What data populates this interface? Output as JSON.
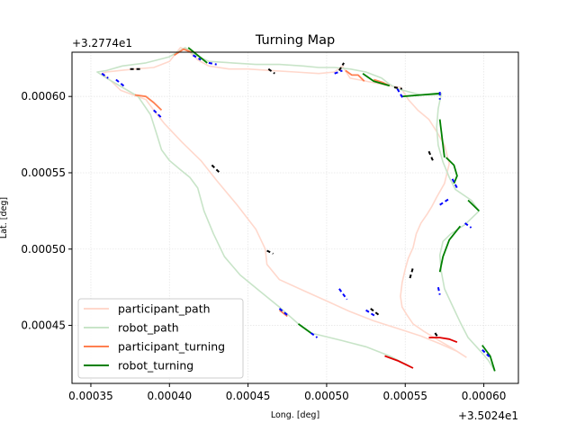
{
  "chart_data": {
    "type": "line",
    "title": "Turning Map",
    "xlabel": "Long. [deg]",
    "ylabel": "Lat. [deg]",
    "x_offset_label": "+3.5024e1",
    "y_offset_label": "+3.2774e1",
    "xlim": [
      0.000338,
      0.000622
    ],
    "ylim": [
      0.000412,
      0.000629
    ],
    "x_ticks": [
      0.00035,
      0.0004,
      0.00045,
      0.0005,
      0.00055,
      0.0006
    ],
    "x_tick_labels": [
      "0.00035",
      "0.00040",
      "0.00045",
      "0.00050",
      "0.00055",
      "0.00060"
    ],
    "y_ticks": [
      0.00045,
      0.0005,
      0.00055,
      0.0006
    ],
    "y_tick_labels": [
      "0.00045",
      "0.00050",
      "0.00055",
      "0.00060"
    ],
    "grid": true,
    "legend_position": "lower-left",
    "colors": {
      "participant_path": "#ffd8cc",
      "robot_path": "#c8e4c8",
      "participant_turning": "#ff7f50",
      "robot_turning": "#008000",
      "blue_dash": "#0000ff",
      "black_dash": "#000000",
      "red_segment": "#e00000"
    },
    "series": [
      {
        "name": "participant_path",
        "kind": "path",
        "x": [
          0.000589,
          0.000583,
          0.000572,
          0.00056,
          0.000545,
          0.00053,
          0.000515,
          0.0005,
          0.000485,
          0.00047,
          0.000462,
          0.000461,
          0.000455,
          0.000443,
          0.00043,
          0.00042,
          0.000408,
          0.000397,
          0.00039,
          0.000385,
          0.000377,
          0.000369,
          0.000363,
          0.000357,
          0.00036,
          0.000368,
          0.000378,
          0.00039,
          0.0004,
          0.000407,
          0.000412,
          0.000418,
          0.000425,
          0.000438,
          0.00045,
          0.000465,
          0.00048,
          0.000495,
          0.000505,
          0.00051,
          0.000515,
          0.00052,
          0.00053,
          0.00054,
          0.000547,
          0.000552,
          0.000558,
          0.000565,
          0.00057,
          0.000575,
          0.000578,
          0.000575,
          0.00057,
          0.000567,
          0.000564,
          0.00056,
          0.000557,
          0.000555,
          0.000552,
          0.00055,
          0.000548,
          0.000547,
          0.000548,
          0.000551,
          0.000555,
          0.000562,
          0.00057,
          0.00058,
          0.000589
        ],
        "y": [
          0.000429,
          0.000433,
          0.000438,
          0.000443,
          0.000448,
          0.000453,
          0.000459,
          0.000466,
          0.000473,
          0.00048,
          0.00049,
          0.0005,
          0.000513,
          0.000529,
          0.000545,
          0.000558,
          0.00057,
          0.000582,
          0.000591,
          0.000598,
          0.000601,
          0.000604,
          0.00061,
          0.000615,
          0.000616,
          0.000617,
          0.000618,
          0.000619,
          0.000623,
          0.000632,
          0.00063,
          0.000624,
          0.00062,
          0.000618,
          0.000618,
          0.000617,
          0.000616,
          0.000615,
          0.000616,
          0.00062,
          0.000612,
          0.000611,
          0.000609,
          0.000607,
          0.000606,
          0.000598,
          0.000591,
          0.000585,
          0.000577,
          0.000568,
          0.000556,
          0.000543,
          0.000534,
          0.000528,
          0.000523,
          0.000517,
          0.00051,
          0.000501,
          0.000494,
          0.000487,
          0.000478,
          0.000469,
          0.000462,
          0.000457,
          0.000451,
          0.000446,
          0.000441,
          0.000435,
          0.000429
        ]
      },
      {
        "name": "robot_path",
        "kind": "path",
        "x": [
          0.000607,
          0.000603,
          0.000598,
          0.00059,
          0.000585,
          0.00058,
          0.000575,
          0.000573,
          0.000572,
          0.000574,
          0.000579,
          0.000588,
          0.000597,
          0.000592,
          0.000582,
          0.000578,
          0.000574,
          0.000571,
          0.00057,
          0.000571,
          0.000573,
          0.000572,
          0.00056,
          0.000545,
          0.00054,
          0.000535,
          0.000525,
          0.000515,
          0.000505,
          0.000495,
          0.000485,
          0.00047,
          0.000455,
          0.00044,
          0.000425,
          0.000415,
          0.00041,
          0.0004,
          0.000385,
          0.00037,
          0.00036,
          0.000354,
          0.00036,
          0.00037,
          0.00038,
          0.000388,
          0.000392,
          0.000395,
          0.0004,
          0.000407,
          0.000413,
          0.000418,
          0.000422,
          0.000428,
          0.000435,
          0.000445,
          0.000458,
          0.00047,
          0.000482,
          0.00049,
          0.000498,
          0.00051,
          0.000525,
          0.00054,
          0.000555
        ],
        "y": [
          0.00042,
          0.000427,
          0.000433,
          0.000442,
          0.000452,
          0.000463,
          0.000474,
          0.000485,
          0.000496,
          0.000505,
          0.00051,
          0.000516,
          0.000525,
          0.000532,
          0.000539,
          0.000547,
          0.000557,
          0.000568,
          0.00058,
          0.000592,
          0.000602,
          0.000601,
          0.000601,
          0.000605,
          0.000608,
          0.000612,
          0.000616,
          0.000618,
          0.000619,
          0.000619,
          0.00062,
          0.000621,
          0.000621,
          0.000622,
          0.000623,
          0.000628,
          0.000632,
          0.000626,
          0.000622,
          0.00062,
          0.000617,
          0.000616,
          0.000612,
          0.000606,
          0.0006,
          0.000588,
          0.000575,
          0.000565,
          0.000558,
          0.000552,
          0.000547,
          0.00054,
          0.000525,
          0.00051,
          0.000495,
          0.000483,
          0.000472,
          0.000462,
          0.000451,
          0.000445,
          0.000443,
          0.00044,
          0.000436,
          0.00043,
          0.000422
        ]
      },
      {
        "name": "participant_turning",
        "kind": "segments",
        "segments": [
          {
            "x": [
              0.000378,
              0.000385,
              0.00039,
              0.000395
            ],
            "y": [
              0.000601,
              0.0006,
              0.000596,
              0.000591
            ]
          },
          {
            "x": [
              0.000403,
              0.000409,
              0.000414
            ],
            "y": [
              0.000627,
              0.000631,
              0.000629
            ]
          },
          {
            "x": [
              0.000512,
              0.000516,
              0.00052,
              0.000524
            ],
            "y": [
              0.000617,
              0.000614,
              0.000614,
              0.00061
            ]
          },
          {
            "x": [
              0.00053,
              0.000536,
              0.00054
            ],
            "y": [
              0.000611,
              0.000609,
              0.000607
            ]
          },
          {
            "x": [
              0.00047,
              0.000475
            ],
            "y": [
              0.00046,
              0.000456
            ]
          }
        ]
      },
      {
        "name": "robot_turning",
        "kind": "segments",
        "segments": [
          {
            "x": [
              0.000412,
              0.000418,
              0.000424
            ],
            "y": [
              0.000632,
              0.000627,
              0.000622
            ]
          },
          {
            "x": [
              0.000523,
              0.00053,
              0.00054
            ],
            "y": [
              0.000615,
              0.00061,
              0.000607
            ]
          },
          {
            "x": [
              0.000548,
              0.00056,
              0.000572
            ],
            "y": [
              0.0006,
              0.000601,
              0.000602
            ]
          },
          {
            "x": [
              0.000572,
              0.000575
            ],
            "y": [
              0.000585,
              0.00056
            ]
          },
          {
            "x": [
              0.000576,
              0.000581,
              0.000583,
              0.000581
            ],
            "y": [
              0.00056,
              0.000555,
              0.000548,
              0.000543
            ]
          },
          {
            "x": [
              0.00059,
              0.000597
            ],
            "y": [
              0.000532,
              0.000525
            ]
          },
          {
            "x": [
              0.000585,
              0.000578,
              0.000574,
              0.000572
            ],
            "y": [
              0.000515,
              0.000506,
              0.000495,
              0.000485
            ]
          },
          {
            "x": [
              0.000599,
              0.000604,
              0.000607
            ],
            "y": [
              0.000437,
              0.00043,
              0.00042
            ]
          },
          {
            "x": [
              0.000482,
              0.00049
            ],
            "y": [
              0.000451,
              0.000445
            ]
          }
        ]
      },
      {
        "name": "blue_dashes",
        "kind": "segments",
        "segments": [
          {
            "x": [
              0.000357,
              0.000361
            ],
            "y": [
              0.000615,
              0.000612
            ]
          },
          {
            "x": [
              0.000366,
              0.000372
            ],
            "y": [
              0.000611,
              0.000606
            ]
          },
          {
            "x": [
              0.00039,
              0.000395
            ],
            "y": [
              0.000591,
              0.000586
            ]
          },
          {
            "x": [
              0.000415,
              0.00042
            ],
            "y": [
              0.000627,
              0.000624
            ]
          },
          {
            "x": [
              0.000425,
              0.00043
            ],
            "y": [
              0.000622,
              0.000621
            ]
          },
          {
            "x": [
              0.000505,
              0.00051
            ],
            "y": [
              0.000615,
              0.000617
            ]
          },
          {
            "x": [
              0.000545,
              0.000549
            ],
            "y": [
              0.000605,
              0.000598
            ]
          },
          {
            "x": [
              0.000572,
              0.000572
            ],
            "y": [
              0.000603,
              0.000598
            ]
          },
          {
            "x": [
              0.00058,
              0.000583
            ],
            "y": [
              0.000546,
              0.00054
            ]
          },
          {
            "x": [
              0.000572,
              0.000578
            ],
            "y": [
              0.000529,
              0.000533
            ]
          },
          {
            "x": [
              0.000588,
              0.000592
            ],
            "y": [
              0.000517,
              0.000514
            ]
          },
          {
            "x": [
              0.000571,
              0.000572
            ],
            "y": [
              0.000475,
              0.00047
            ]
          },
          {
            "x": [
              0.000508,
              0.000513
            ],
            "y": [
              0.000474,
              0.000467
            ]
          },
          {
            "x": [
              0.000525,
              0.000531
            ],
            "y": [
              0.00046,
              0.000456
            ]
          },
          {
            "x": [
              0.00047,
              0.000476
            ],
            "y": [
              0.000461,
              0.000456
            ]
          },
          {
            "x": [
              0.00049,
              0.000494
            ],
            "y": [
              0.000445,
              0.000442
            ]
          },
          {
            "x": [
              0.000599,
              0.000604
            ],
            "y": [
              0.000434,
              0.000429
            ]
          }
        ]
      },
      {
        "name": "black_dashes",
        "kind": "segments",
        "segments": [
          {
            "x": [
              0.000375,
              0.000382
            ],
            "y": [
              0.000618,
              0.000618
            ]
          },
          {
            "x": [
              0.000463,
              0.000467
            ],
            "y": [
              0.000618,
              0.000615
            ]
          },
          {
            "x": [
              0.000508,
              0.000511
            ],
            "y": [
              0.000617,
              0.000622
            ]
          },
          {
            "x": [
              0.000543,
              0.000548
            ],
            "y": [
              0.000606,
              0.000605
            ]
          },
          {
            "x": [
              0.000565,
              0.000568
            ],
            "y": [
              0.000564,
              0.000557
            ]
          },
          {
            "x": [
              0.000427,
              0.000432
            ],
            "y": [
              0.000555,
              0.00055
            ]
          },
          {
            "x": [
              0.000462,
              0.000466
            ],
            "y": [
              0.000499,
              0.000497
            ]
          },
          {
            "x": [
              0.000528,
              0.000533
            ],
            "y": [
              0.000461,
              0.000457
            ]
          },
          {
            "x": [
              0.000553,
              0.000555
            ],
            "y": [
              0.000481,
              0.000488
            ]
          },
          {
            "x": [
              0.000569,
              0.000571
            ],
            "y": [
              0.000445,
              0.000442
            ]
          }
        ]
      },
      {
        "name": "red_segments",
        "kind": "segments",
        "segments": [
          {
            "x": [
              0.000537,
              0.000545,
              0.000551,
              0.000555
            ],
            "y": [
              0.00043,
              0.000427,
              0.000424,
              0.000422
            ]
          },
          {
            "x": [
              0.000565,
              0.000572,
              0.000578,
              0.000583
            ],
            "y": [
              0.000442,
              0.000442,
              0.000441,
              0.000439
            ]
          }
        ]
      }
    ],
    "legend": [
      {
        "label": "participant_path",
        "color": "#ffd8cc"
      },
      {
        "label": "robot_path",
        "color": "#c8e4c8"
      },
      {
        "label": "participant_turning",
        "color": "#ff7f50"
      },
      {
        "label": "robot_turning",
        "color": "#008000"
      }
    ]
  }
}
